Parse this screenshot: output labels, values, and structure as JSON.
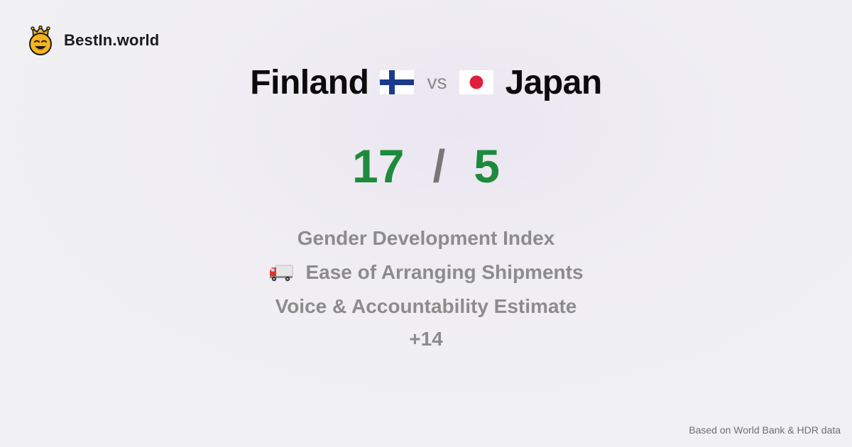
{
  "brand": {
    "name": "BestIn.world",
    "icon": "crown-smiley-icon"
  },
  "comparison": {
    "left": {
      "name": "Finland",
      "flag": "finland-flag-icon"
    },
    "vs_label": "vs",
    "right": {
      "name": "Japan",
      "flag": "japan-flag-icon"
    }
  },
  "score": {
    "left": "17",
    "separator": "/",
    "right": "5",
    "color": "#1e8a3c"
  },
  "metrics": [
    {
      "label": "Gender Development Index",
      "icon": ""
    },
    {
      "label": "Ease of Arranging Shipments",
      "icon": "truck-icon"
    },
    {
      "label": "Voice & Accountability Estimate",
      "icon": ""
    }
  ],
  "more_label": "+14",
  "footer": {
    "source": "Based on World Bank & HDR data"
  }
}
